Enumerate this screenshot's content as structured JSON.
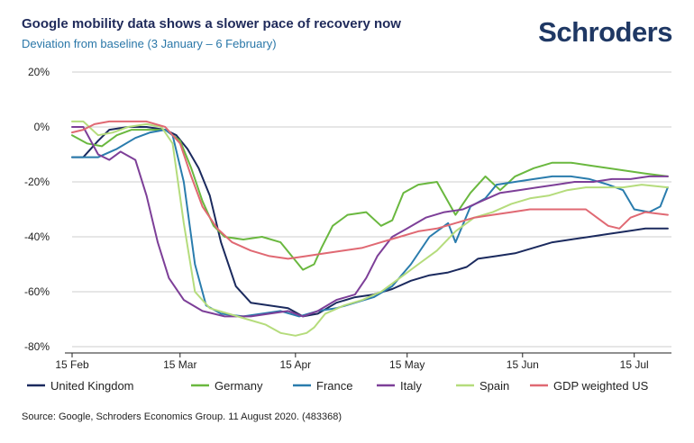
{
  "title": "Google mobility data shows a slower pace of recovery now",
  "subtitle": "Deviation from baseline (3 January – 6 February)",
  "brand": "Schroders",
  "source": "Source: Google, Schroders Economics Group. 11 August 2020. (483368)",
  "chart_data": {
    "type": "line",
    "ylim": [
      -80,
      20
    ],
    "yticks": [
      20,
      0,
      -20,
      -40,
      -60,
      -80
    ],
    "ytick_labels": [
      "20%",
      "0%",
      "-20%",
      "-40%",
      "-60%",
      "-80%"
    ],
    "xlim": [
      "2020-02-15",
      "2020-07-25"
    ],
    "xticks": [
      "2020-02-15",
      "2020-03-15",
      "2020-04-15",
      "2020-05-15",
      "2020-06-15",
      "2020-07-15"
    ],
    "xtick_labels": [
      "15 Feb",
      "15 Mar",
      "15 Apr",
      "15 May",
      "15 Jun",
      "15 Jul"
    ],
    "grid": true,
    "legend_position": "bottom",
    "series": [
      {
        "name": "United Kingdom",
        "color": "#1b2a5e",
        "points": [
          [
            "2020-02-15",
            -11
          ],
          [
            "2020-02-18",
            -11
          ],
          [
            "2020-02-22",
            -5
          ],
          [
            "2020-02-25",
            -1
          ],
          [
            "2020-03-01",
            0
          ],
          [
            "2020-03-06",
            0
          ],
          [
            "2020-03-11",
            -1
          ],
          [
            "2020-03-14",
            -3
          ],
          [
            "2020-03-17",
            -8
          ],
          [
            "2020-03-20",
            -15
          ],
          [
            "2020-03-23",
            -25
          ],
          [
            "2020-03-26",
            -42
          ],
          [
            "2020-03-30",
            -58
          ],
          [
            "2020-04-03",
            -64
          ],
          [
            "2020-04-08",
            -65
          ],
          [
            "2020-04-13",
            -66
          ],
          [
            "2020-04-17",
            -69
          ],
          [
            "2020-04-21",
            -68
          ],
          [
            "2020-04-26",
            -64
          ],
          [
            "2020-05-01",
            -62
          ],
          [
            "2020-05-06",
            -61
          ],
          [
            "2020-05-11",
            -59
          ],
          [
            "2020-05-16",
            -56
          ],
          [
            "2020-05-21",
            -54
          ],
          [
            "2020-05-26",
            -53
          ],
          [
            "2020-05-31",
            -51
          ],
          [
            "2020-06-03",
            -48
          ],
          [
            "2020-06-08",
            -47
          ],
          [
            "2020-06-13",
            -46
          ],
          [
            "2020-06-18",
            -44
          ],
          [
            "2020-06-23",
            -42
          ],
          [
            "2020-06-28",
            -41
          ],
          [
            "2020-07-03",
            -40
          ],
          [
            "2020-07-08",
            -39
          ],
          [
            "2020-07-13",
            -38
          ],
          [
            "2020-07-18",
            -37
          ],
          [
            "2020-07-24",
            -37
          ]
        ]
      },
      {
        "name": "Germany",
        "color": "#6ab83f",
        "points": [
          [
            "2020-02-15",
            -3
          ],
          [
            "2020-02-19",
            -6
          ],
          [
            "2020-02-23",
            -7
          ],
          [
            "2020-02-27",
            -3
          ],
          [
            "2020-03-02",
            -1
          ],
          [
            "2020-03-07",
            -1
          ],
          [
            "2020-03-11",
            -1
          ],
          [
            "2020-03-15",
            -5
          ],
          [
            "2020-03-18",
            -15
          ],
          [
            "2020-03-21",
            -27
          ],
          [
            "2020-03-24",
            -36
          ],
          [
            "2020-03-27",
            -40
          ],
          [
            "2020-04-01",
            -41
          ],
          [
            "2020-04-06",
            -40
          ],
          [
            "2020-04-11",
            -42
          ],
          [
            "2020-04-14",
            -47
          ],
          [
            "2020-04-17",
            -52
          ],
          [
            "2020-04-20",
            -50
          ],
          [
            "2020-04-22",
            -44
          ],
          [
            "2020-04-25",
            -36
          ],
          [
            "2020-04-29",
            -32
          ],
          [
            "2020-05-04",
            -31
          ],
          [
            "2020-05-08",
            -36
          ],
          [
            "2020-05-11",
            -34
          ],
          [
            "2020-05-14",
            -24
          ],
          [
            "2020-05-18",
            -21
          ],
          [
            "2020-05-23",
            -20
          ],
          [
            "2020-05-28",
            -32
          ],
          [
            "2020-06-01",
            -24
          ],
          [
            "2020-06-05",
            -18
          ],
          [
            "2020-06-09",
            -23
          ],
          [
            "2020-06-13",
            -18
          ],
          [
            "2020-06-18",
            -15
          ],
          [
            "2020-06-23",
            -13
          ],
          [
            "2020-06-28",
            -13
          ],
          [
            "2020-07-03",
            -14
          ],
          [
            "2020-07-08",
            -15
          ],
          [
            "2020-07-13",
            -16
          ],
          [
            "2020-07-18",
            -17
          ],
          [
            "2020-07-24",
            -18
          ]
        ]
      },
      {
        "name": "France",
        "color": "#2a7cad",
        "points": [
          [
            "2020-02-15",
            -11
          ],
          [
            "2020-02-22",
            -11
          ],
          [
            "2020-02-27",
            -8
          ],
          [
            "2020-03-03",
            -4
          ],
          [
            "2020-03-07",
            -2
          ],
          [
            "2020-03-11",
            -1
          ],
          [
            "2020-03-13",
            -3
          ],
          [
            "2020-03-16",
            -20
          ],
          [
            "2020-03-19",
            -50
          ],
          [
            "2020-03-22",
            -65
          ],
          [
            "2020-03-26",
            -68
          ],
          [
            "2020-04-01",
            -69
          ],
          [
            "2020-04-06",
            -68
          ],
          [
            "2020-04-11",
            -67
          ],
          [
            "2020-04-16",
            -69
          ],
          [
            "2020-04-21",
            -67
          ],
          [
            "2020-04-26",
            -66
          ],
          [
            "2020-05-01",
            -64
          ],
          [
            "2020-05-06",
            -62
          ],
          [
            "2020-05-11",
            -58
          ],
          [
            "2020-05-16",
            -50
          ],
          [
            "2020-05-21",
            -40
          ],
          [
            "2020-05-26",
            -35
          ],
          [
            "2020-05-28",
            -42
          ],
          [
            "2020-06-01",
            -29
          ],
          [
            "2020-06-05",
            -26
          ],
          [
            "2020-06-08",
            -21
          ],
          [
            "2020-06-13",
            -20
          ],
          [
            "2020-06-18",
            -19
          ],
          [
            "2020-06-23",
            -18
          ],
          [
            "2020-06-28",
            -18
          ],
          [
            "2020-07-03",
            -19
          ],
          [
            "2020-07-08",
            -21
          ],
          [
            "2020-07-12",
            -23
          ],
          [
            "2020-07-15",
            -30
          ],
          [
            "2020-07-19",
            -31
          ],
          [
            "2020-07-22",
            -29
          ],
          [
            "2020-07-24",
            -22
          ]
        ]
      },
      {
        "name": "Italy",
        "color": "#7d3f98",
        "points": [
          [
            "2020-02-15",
            0
          ],
          [
            "2020-02-18",
            0
          ],
          [
            "2020-02-22",
            -10
          ],
          [
            "2020-02-25",
            -12
          ],
          [
            "2020-02-28",
            -9
          ],
          [
            "2020-03-03",
            -12
          ],
          [
            "2020-03-06",
            -25
          ],
          [
            "2020-03-09",
            -42
          ],
          [
            "2020-03-12",
            -55
          ],
          [
            "2020-03-16",
            -63
          ],
          [
            "2020-03-21",
            -67
          ],
          [
            "2020-03-27",
            -69
          ],
          [
            "2020-04-03",
            -69
          ],
          [
            "2020-04-08",
            -68
          ],
          [
            "2020-04-13",
            -67
          ],
          [
            "2020-04-17",
            -69
          ],
          [
            "2020-04-21",
            -67
          ],
          [
            "2020-04-26",
            -63
          ],
          [
            "2020-05-01",
            -61
          ],
          [
            "2020-05-04",
            -55
          ],
          [
            "2020-05-07",
            -47
          ],
          [
            "2020-05-11",
            -40
          ],
          [
            "2020-05-15",
            -37
          ],
          [
            "2020-05-20",
            -33
          ],
          [
            "2020-05-25",
            -31
          ],
          [
            "2020-05-30",
            -30
          ],
          [
            "2020-06-04",
            -27
          ],
          [
            "2020-06-09",
            -24
          ],
          [
            "2020-06-14",
            -23
          ],
          [
            "2020-06-19",
            -22
          ],
          [
            "2020-06-24",
            -21
          ],
          [
            "2020-06-29",
            -20
          ],
          [
            "2020-07-04",
            -20
          ],
          [
            "2020-07-09",
            -19
          ],
          [
            "2020-07-14",
            -19
          ],
          [
            "2020-07-19",
            -18
          ],
          [
            "2020-07-24",
            -18
          ]
        ]
      },
      {
        "name": "Spain",
        "color": "#b5dc7c",
        "points": [
          [
            "2020-02-15",
            2
          ],
          [
            "2020-02-18",
            2
          ],
          [
            "2020-02-22",
            -3
          ],
          [
            "2020-02-26",
            -2
          ],
          [
            "2020-03-01",
            0
          ],
          [
            "2020-03-06",
            1
          ],
          [
            "2020-03-10",
            0
          ],
          [
            "2020-03-13",
            -6
          ],
          [
            "2020-03-16",
            -35
          ],
          [
            "2020-03-19",
            -60
          ],
          [
            "2020-03-23",
            -66
          ],
          [
            "2020-03-28",
            -68
          ],
          [
            "2020-04-02",
            -70
          ],
          [
            "2020-04-07",
            -72
          ],
          [
            "2020-04-11",
            -75
          ],
          [
            "2020-04-15",
            -76
          ],
          [
            "2020-04-18",
            -75
          ],
          [
            "2020-04-20",
            -73
          ],
          [
            "2020-04-23",
            -68
          ],
          [
            "2020-04-28",
            -65
          ],
          [
            "2020-05-03",
            -63
          ],
          [
            "2020-05-08",
            -60
          ],
          [
            "2020-05-13",
            -55
          ],
          [
            "2020-05-18",
            -50
          ],
          [
            "2020-05-23",
            -45
          ],
          [
            "2020-05-28",
            -38
          ],
          [
            "2020-06-02",
            -33
          ],
          [
            "2020-06-07",
            -31
          ],
          [
            "2020-06-12",
            -28
          ],
          [
            "2020-06-17",
            -26
          ],
          [
            "2020-06-22",
            -25
          ],
          [
            "2020-06-27",
            -23
          ],
          [
            "2020-07-02",
            -22
          ],
          [
            "2020-07-07",
            -22
          ],
          [
            "2020-07-12",
            -22
          ],
          [
            "2020-07-17",
            -21
          ],
          [
            "2020-07-24",
            -22
          ]
        ]
      },
      {
        "name": "GDP weighted US",
        "color": "#e06973",
        "points": [
          [
            "2020-02-15",
            -2
          ],
          [
            "2020-02-18",
            -1
          ],
          [
            "2020-02-21",
            1
          ],
          [
            "2020-02-25",
            2
          ],
          [
            "2020-03-01",
            2
          ],
          [
            "2020-03-06",
            2
          ],
          [
            "2020-03-11",
            0
          ],
          [
            "2020-03-15",
            -6
          ],
          [
            "2020-03-18",
            -18
          ],
          [
            "2020-03-21",
            -29
          ],
          [
            "2020-03-25",
            -37
          ],
          [
            "2020-03-29",
            -42
          ],
          [
            "2020-04-03",
            -45
          ],
          [
            "2020-04-08",
            -47
          ],
          [
            "2020-04-13",
            -48
          ],
          [
            "2020-04-18",
            -47
          ],
          [
            "2020-04-23",
            -46
          ],
          [
            "2020-04-28",
            -45
          ],
          [
            "2020-05-03",
            -44
          ],
          [
            "2020-05-08",
            -42
          ],
          [
            "2020-05-13",
            -40
          ],
          [
            "2020-05-18",
            -38
          ],
          [
            "2020-05-23",
            -37
          ],
          [
            "2020-05-28",
            -35
          ],
          [
            "2020-06-02",
            -33
          ],
          [
            "2020-06-07",
            -32
          ],
          [
            "2020-06-12",
            -31
          ],
          [
            "2020-06-17",
            -30
          ],
          [
            "2020-06-22",
            -30
          ],
          [
            "2020-06-27",
            -30
          ],
          [
            "2020-07-02",
            -30
          ],
          [
            "2020-07-05",
            -33
          ],
          [
            "2020-07-08",
            -36
          ],
          [
            "2020-07-11",
            -37
          ],
          [
            "2020-07-14",
            -33
          ],
          [
            "2020-07-18",
            -31
          ],
          [
            "2020-07-24",
            -32
          ]
        ]
      }
    ]
  }
}
